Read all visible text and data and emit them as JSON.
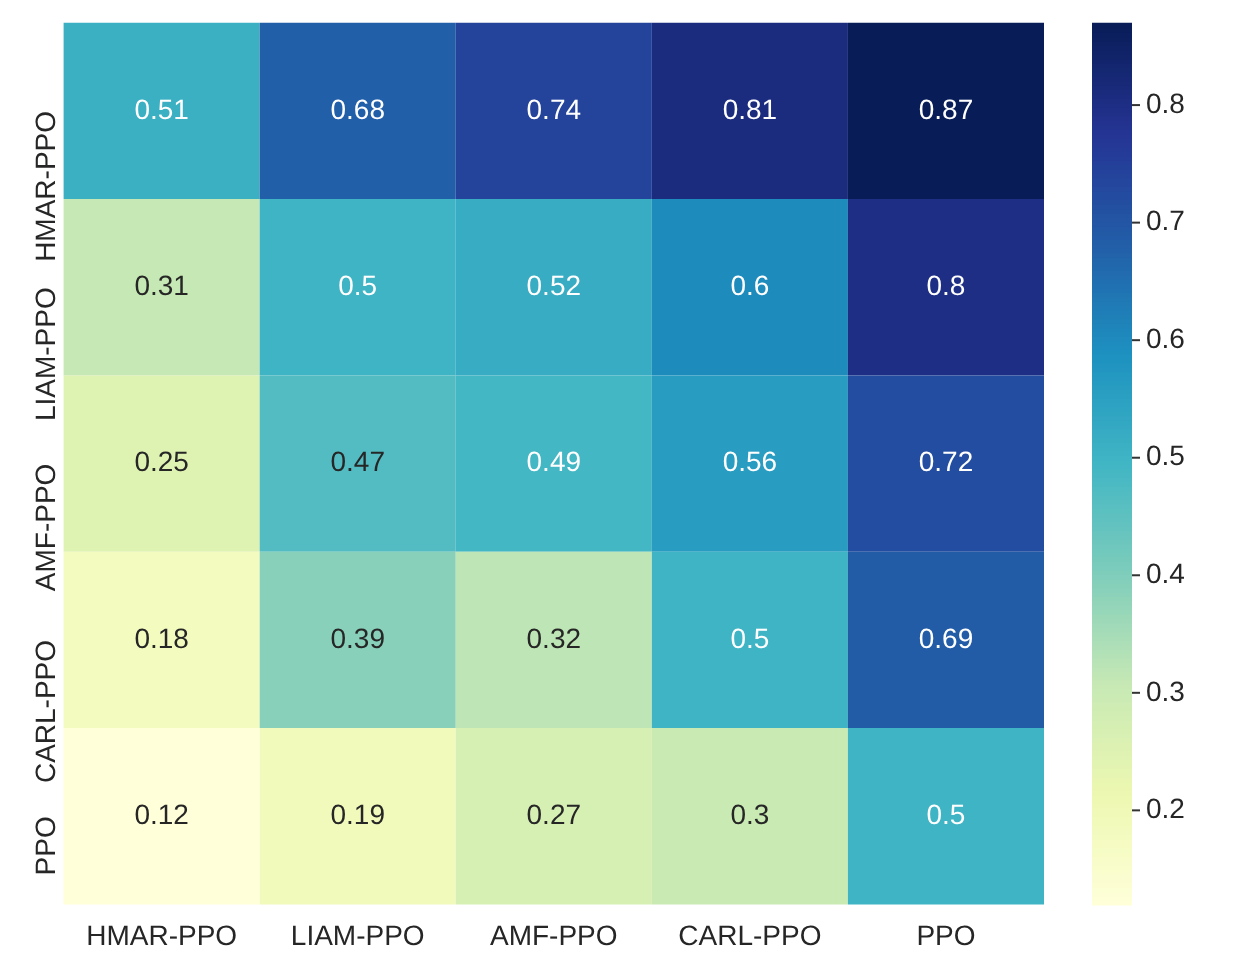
{
  "chart_data": {
    "type": "heatmap",
    "categories": [
      "HMAR-PPO",
      "LIAM-PPO",
      "AMF-PPO",
      "CARL-PPO",
      "PPO"
    ],
    "y_categories": [
      "HMAR-PPO",
      "LIAM-PPO",
      "AMF-PPO",
      "CARL-PPO",
      "PPO"
    ],
    "cells": [
      [
        0.51,
        0.68,
        0.74,
        0.81,
        0.87
      ],
      [
        0.31,
        0.5,
        0.52,
        0.6,
        0.8
      ],
      [
        0.25,
        0.47,
        0.49,
        0.56,
        0.72
      ],
      [
        0.18,
        0.39,
        0.32,
        0.5,
        0.69
      ],
      [
        0.12,
        0.19,
        0.27,
        0.3,
        0.5
      ]
    ],
    "clim": [
      0.12,
      0.87
    ],
    "cticks": [
      0.2,
      0.3,
      0.4,
      0.5,
      0.6,
      0.7,
      0.8
    ],
    "data_labels": true
  }
}
